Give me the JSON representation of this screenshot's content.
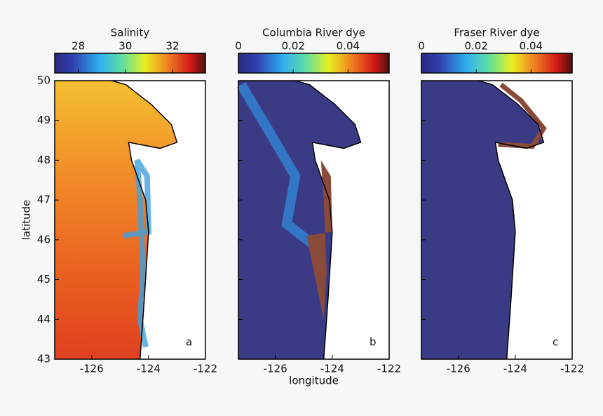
{
  "chart_data": [
    {
      "type": "map",
      "title": "Salinity",
      "colormap": "jet",
      "clim": [
        27,
        33.4
      ],
      "cticks": [
        28,
        30,
        32
      ],
      "panel_label": "a",
      "ylabel": "latitude",
      "xlim": [
        -127.3,
        -122
      ],
      "ylim": [
        43,
        50
      ],
      "xticks": [
        -126,
        -124,
        -122
      ],
      "yticks": [
        43,
        44,
        45,
        46,
        47,
        48,
        49,
        50
      ]
    },
    {
      "type": "map",
      "title": "Columbia River dye",
      "colormap": "jet",
      "clim": [
        0,
        0.055
      ],
      "cticks": [
        0,
        0.02,
        0.04
      ],
      "panel_label": "b",
      "xlabel": "longitude",
      "xlim": [
        -127.3,
        -122
      ],
      "ylim": [
        43,
        50
      ],
      "xticks": [
        -126,
        -124,
        -122
      ],
      "yticks": [
        43,
        44,
        45,
        46,
        47,
        48,
        49,
        50
      ]
    },
    {
      "type": "map",
      "title": "Fraser River dye",
      "colormap": "jet",
      "clim": [
        0,
        0.055
      ],
      "cticks": [
        0,
        0.02,
        0.04
      ],
      "panel_label": "c",
      "xlim": [
        -127.3,
        -122
      ],
      "ylim": [
        43,
        50
      ],
      "xticks": [
        -126,
        -124,
        -122
      ],
      "yticks": [
        43,
        44,
        45,
        46,
        47,
        48,
        49,
        50
      ]
    }
  ]
}
